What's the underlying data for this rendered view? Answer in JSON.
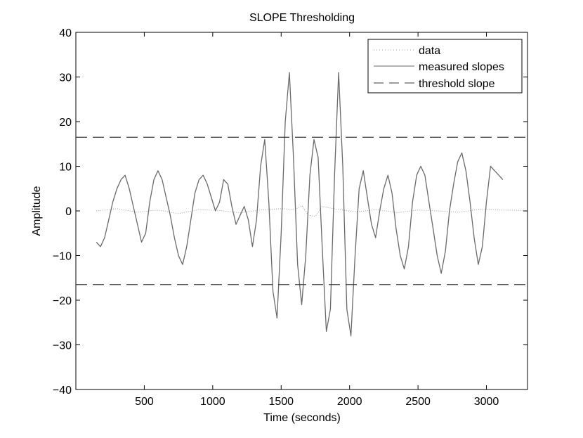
{
  "chart_data": {
    "type": "line",
    "title": "SLOPE Thresholding",
    "xlabel": "Time (seconds)",
    "ylabel": "Amplitude",
    "xlim": [
      0,
      3300
    ],
    "ylim": [
      -40,
      40
    ],
    "xticks": [
      500,
      1000,
      1500,
      2000,
      2500,
      3000
    ],
    "yticks": [
      -40,
      -30,
      -20,
      -10,
      0,
      10,
      20,
      30,
      40
    ],
    "ytick_labels": [
      "−40",
      "−30",
      "−20",
      "−10",
      "0",
      "10",
      "20",
      "30",
      "40"
    ],
    "grid": false,
    "legend_position": "top-right",
    "series": [
      {
        "name": "data",
        "style": "dotted",
        "color": "#9a9a9a",
        "x": [
          150,
          300,
          450,
          600,
          750,
          900,
          1050,
          1200,
          1350,
          1500,
          1600,
          1650,
          1700,
          1750,
          1800,
          1900,
          2050,
          2200,
          2350,
          2500,
          2650,
          2800,
          2950,
          3100,
          3300
        ],
        "y": [
          0,
          0.5,
          -0.3,
          0.2,
          -0.6,
          0.3,
          0.1,
          -0.4,
          0.2,
          0.5,
          0.3,
          1.2,
          -1.0,
          -1.2,
          1.0,
          0.4,
          -0.2,
          0.3,
          -0.4,
          0.2,
          0.0,
          -0.3,
          0.4,
          0.2,
          0.1
        ]
      },
      {
        "name": "measured slopes",
        "style": "solid",
        "color": "#6a6a6a",
        "x": [
          150,
          180,
          210,
          240,
          270,
          300,
          330,
          360,
          390,
          420,
          450,
          480,
          510,
          540,
          570,
          600,
          630,
          660,
          690,
          720,
          750,
          780,
          810,
          840,
          870,
          900,
          930,
          960,
          990,
          1020,
          1050,
          1080,
          1110,
          1140,
          1170,
          1200,
          1230,
          1260,
          1290,
          1320,
          1350,
          1380,
          1410,
          1440,
          1470,
          1500,
          1530,
          1560,
          1590,
          1620,
          1650,
          1680,
          1710,
          1740,
          1770,
          1800,
          1830,
          1860,
          1890,
          1920,
          1950,
          1980,
          2010,
          2040,
          2070,
          2100,
          2130,
          2160,
          2190,
          2220,
          2250,
          2280,
          2310,
          2340,
          2370,
          2400,
          2430,
          2460,
          2490,
          2520,
          2550,
          2580,
          2610,
          2640,
          2670,
          2700,
          2730,
          2760,
          2790,
          2820,
          2850,
          2880,
          2910,
          2940,
          2970,
          3000,
          3030,
          3060,
          3090,
          3120
        ],
        "y": [
          -7,
          -8,
          -6,
          -2,
          2,
          5,
          7,
          8,
          5,
          1,
          -3,
          -7,
          -5,
          2,
          7,
          9,
          7,
          3,
          -1,
          -6,
          -10,
          -12,
          -8,
          -2,
          4,
          7,
          8,
          6,
          3,
          0,
          2,
          7,
          6,
          1,
          -3,
          -1,
          1,
          -2,
          -8,
          -2,
          10,
          16,
          2,
          -18,
          -24,
          -5,
          20,
          31,
          12,
          -12,
          -21,
          -10,
          8,
          16,
          12,
          -8,
          -27,
          -22,
          8,
          31,
          10,
          -22,
          -28,
          -10,
          5,
          9,
          3,
          -3,
          -6,
          0,
          5,
          8,
          4,
          -4,
          -10,
          -13,
          -8,
          2,
          8,
          10,
          8,
          2,
          -4,
          -10,
          -14,
          -9,
          0,
          6,
          11,
          13,
          9,
          2,
          -6,
          -12,
          -8,
          2,
          10,
          9,
          8,
          7
        ]
      },
      {
        "name": "threshold slope",
        "style": "dashed",
        "color": "#3a3a3a",
        "levels": [
          16.5,
          -16.5
        ]
      }
    ]
  }
}
